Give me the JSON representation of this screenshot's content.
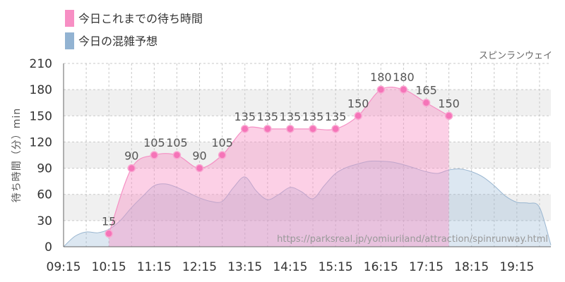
{
  "legend": [
    {
      "label": "今日これまでの待ち時間",
      "color": "#f78fc4"
    },
    {
      "label": "今日の混雑予想",
      "color": "#92b3d2"
    }
  ],
  "attraction_name": "スピンランウェイ",
  "watermark": "https://parksreal.jp/yomiuriland/attraction/spinrunway.html",
  "chart_data": {
    "type": "area",
    "ylabel": "待ち時間（分）min",
    "ylim": [
      0,
      210
    ],
    "yticks": [
      "0",
      "30",
      "60",
      "90",
      "120",
      "150",
      "180",
      "210"
    ],
    "xlim": [
      "09:15",
      "20:00"
    ],
    "xticks": [
      "09:15",
      "10:15",
      "11:15",
      "12:15",
      "13:15",
      "14:15",
      "15:15",
      "16:15",
      "17:15",
      "18:15",
      "19:15"
    ],
    "grid": true,
    "series": [
      {
        "name": "今日の混雑予想",
        "color": "#92b3d2",
        "x": [
          "09:15",
          "09:30",
          "09:45",
          "10:00",
          "10:15",
          "10:30",
          "10:45",
          "11:00",
          "11:15",
          "11:30",
          "11:45",
          "12:00",
          "12:15",
          "12:30",
          "12:45",
          "13:00",
          "13:15",
          "13:30",
          "13:45",
          "14:00",
          "14:15",
          "14:30",
          "14:45",
          "15:00",
          "15:15",
          "15:30",
          "15:45",
          "16:00",
          "16:15",
          "16:30",
          "16:45",
          "17:00",
          "17:15",
          "17:30",
          "17:45",
          "18:00",
          "18:15",
          "18:30",
          "18:45",
          "19:00",
          "19:15",
          "19:30",
          "19:45",
          "20:00"
        ],
        "y": [
          0,
          12,
          17,
          16,
          20,
          30,
          45,
          58,
          70,
          72,
          68,
          62,
          56,
          52,
          52,
          68,
          80,
          64,
          54,
          60,
          68,
          63,
          55,
          70,
          84,
          91,
          95,
          98,
          98,
          97,
          94,
          90,
          86,
          84,
          88,
          89,
          86,
          80,
          70,
          58,
          51,
          50,
          45,
          2
        ]
      },
      {
        "name": "今日これまでの待ち時間",
        "color": "#f78fc4",
        "x": [
          "10:15",
          "10:45",
          "11:15",
          "11:45",
          "12:15",
          "12:45",
          "13:15",
          "13:45",
          "14:15",
          "14:45",
          "15:15",
          "15:45",
          "16:15",
          "16:45",
          "17:15",
          "17:45"
        ],
        "y": [
          15,
          90,
          105,
          105,
          90,
          105,
          135,
          135,
          135,
          135,
          135,
          150,
          180,
          180,
          165,
          150
        ]
      }
    ]
  }
}
